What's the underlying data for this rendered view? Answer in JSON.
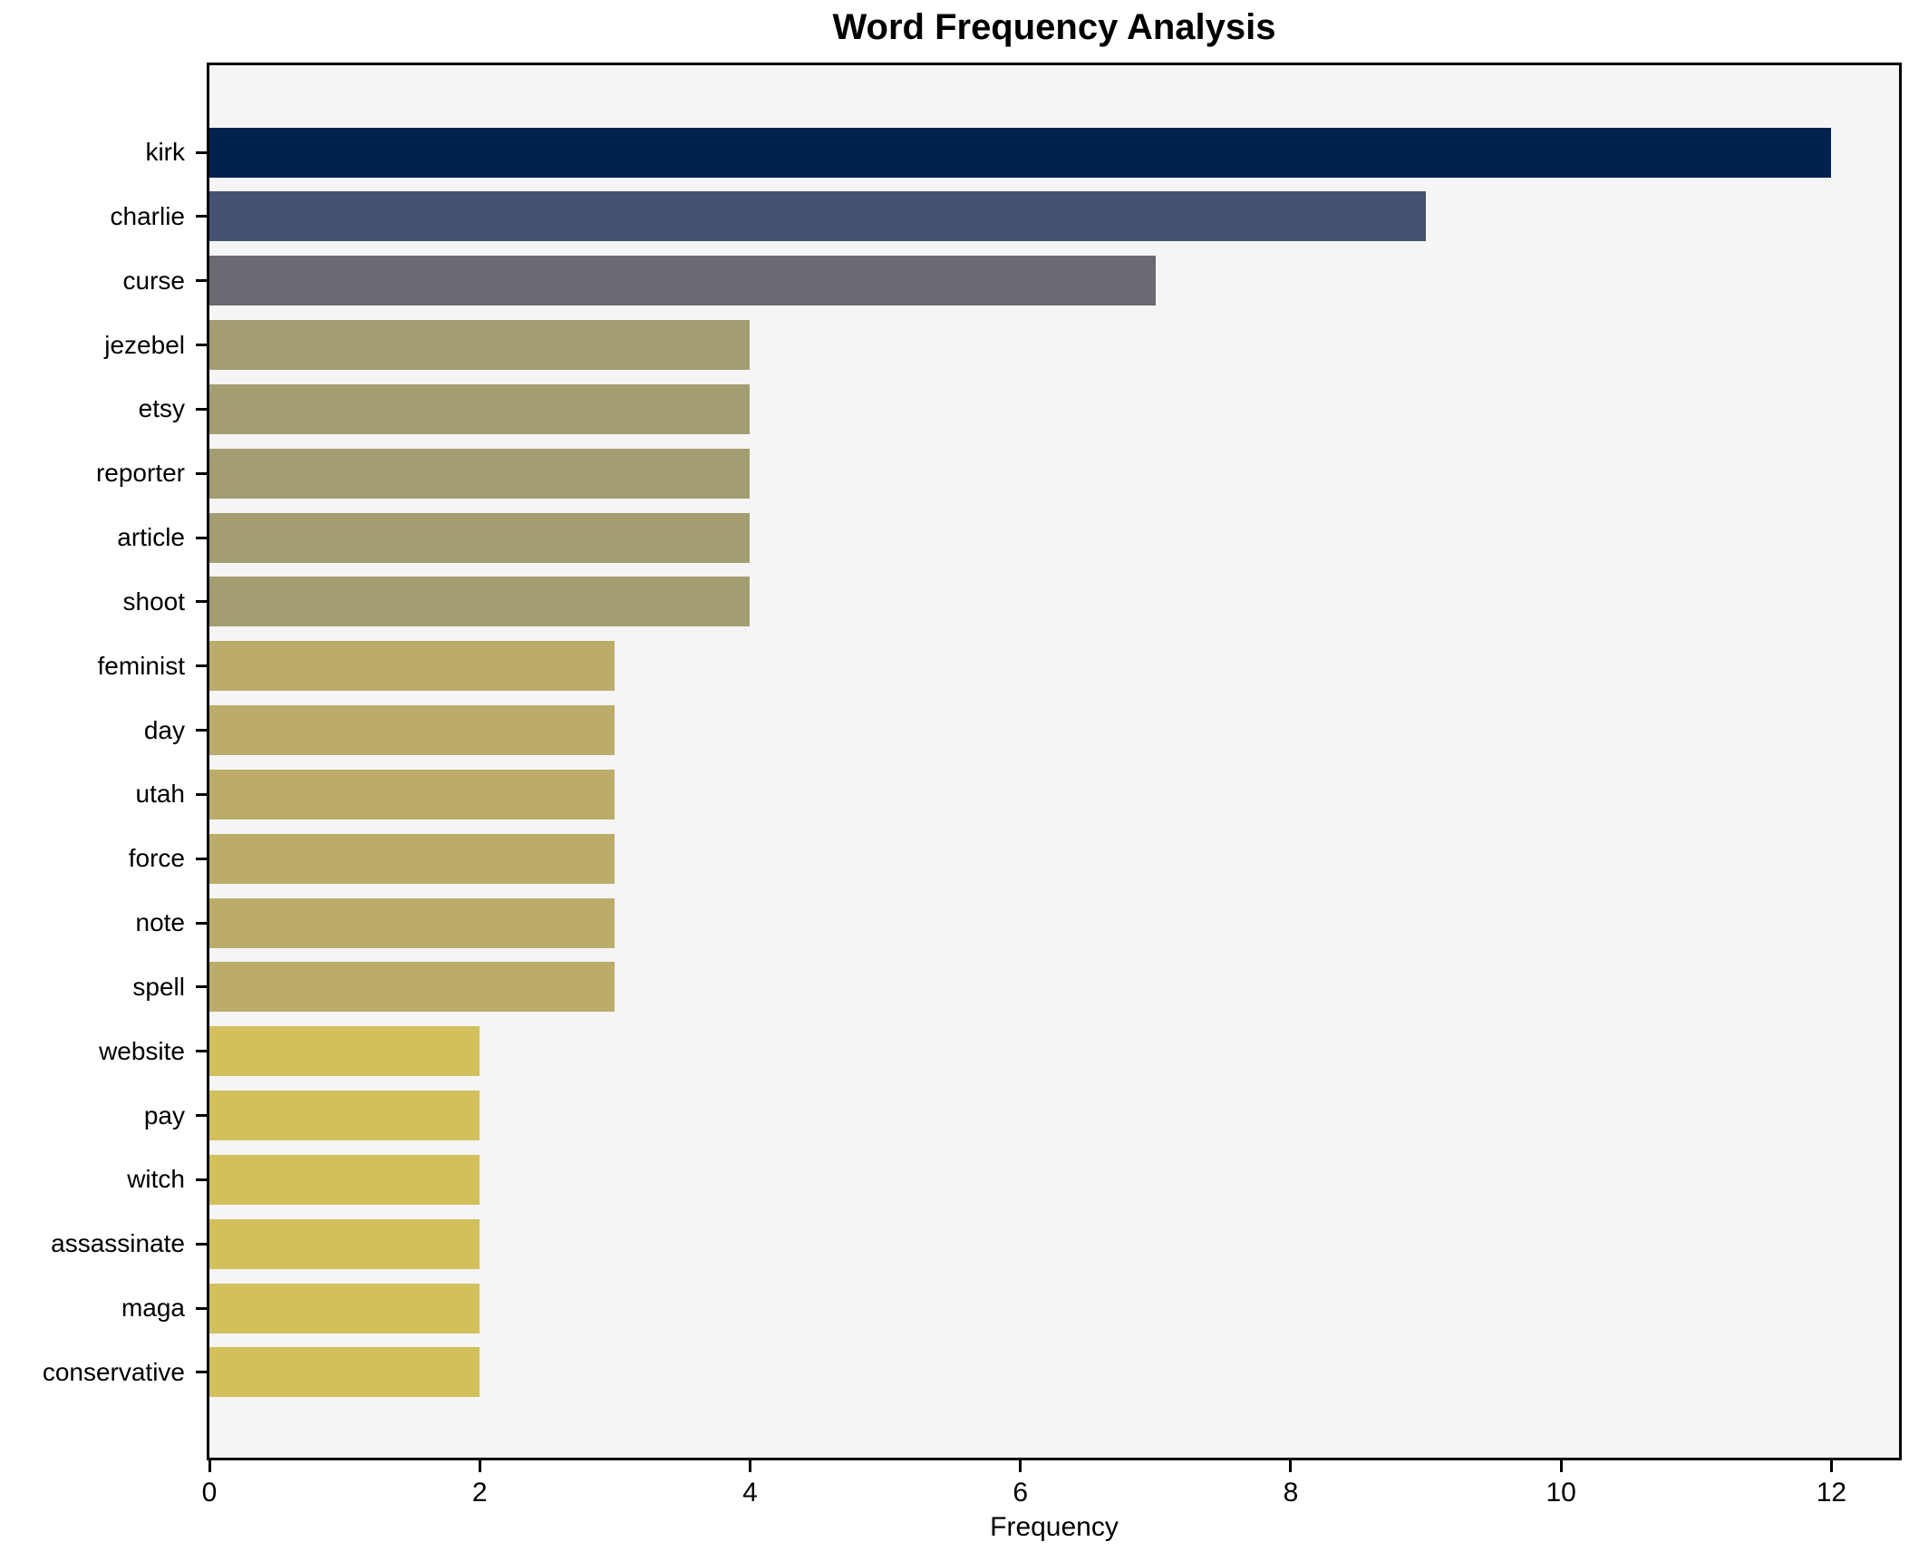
{
  "chart_data": {
    "type": "bar",
    "orientation": "horizontal",
    "title": "Word Frequency Analysis",
    "xlabel": "Frequency",
    "ylabel": "",
    "categories": [
      "kirk",
      "charlie",
      "curse",
      "jezebel",
      "etsy",
      "reporter",
      "article",
      "shoot",
      "feminist",
      "day",
      "utah",
      "force",
      "note",
      "spell",
      "website",
      "pay",
      "witch",
      "assassinate",
      "maga",
      "conservative"
    ],
    "values": [
      12,
      9,
      7,
      4,
      4,
      4,
      4,
      4,
      3,
      3,
      3,
      3,
      3,
      3,
      2,
      2,
      2,
      2,
      2,
      2
    ],
    "bar_colors": [
      "#01224e",
      "#455271",
      "#6a6a72",
      "#a49d72",
      "#a49d72",
      "#a49d72",
      "#a49d72",
      "#a49d72",
      "#bbad69",
      "#bbad69",
      "#bbad69",
      "#bbad69",
      "#bbad69",
      "#bbad69",
      "#d2c05c",
      "#d2c05c",
      "#d2c05c",
      "#d2c05c",
      "#d2c05c",
      "#d2c05c"
    ],
    "xlim": [
      0,
      12.5
    ],
    "x_ticks": [
      0,
      2,
      4,
      6,
      8,
      10,
      12
    ],
    "grid": false,
    "legend": null,
    "plot_background": "#f5f5f6",
    "figure_background": "#ffffff",
    "frame_color": "#000000"
  }
}
